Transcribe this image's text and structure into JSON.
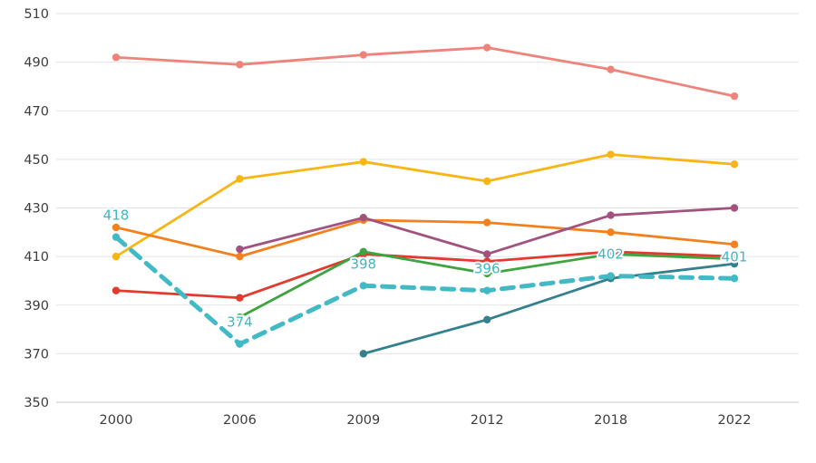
{
  "chart_data": {
    "type": "line",
    "title": "",
    "xlabel": "",
    "ylabel": "",
    "legend": "none",
    "grid": true,
    "ylim": [
      350,
      510
    ],
    "yticks": [
      "350",
      "370",
      "390",
      "410",
      "430",
      "450",
      "470",
      "490",
      "510"
    ],
    "categories": [
      "2000",
      "2006",
      "2009",
      "2012",
      "2018",
      "2022"
    ],
    "series": [
      {
        "name": "salmon-line",
        "color": "#ee837b",
        "dashed": false,
        "values": [
          492,
          489,
          493,
          496,
          487,
          476
        ]
      },
      {
        "name": "amber-line",
        "color": "#f8b513",
        "dashed": false,
        "values": [
          410,
          442,
          449,
          441,
          452,
          448
        ]
      },
      {
        "name": "orange-line",
        "color": "#f3801e",
        "dashed": false,
        "values": [
          422,
          410,
          425,
          424,
          420,
          415
        ]
      },
      {
        "name": "red-line",
        "color": "#e23a2e",
        "dashed": false,
        "values": [
          396,
          393,
          411,
          408,
          412,
          410
        ]
      },
      {
        "name": "purple-line",
        "color": "#a2527e",
        "dashed": false,
        "values": [
          null,
          413,
          426,
          411,
          427,
          430
        ]
      },
      {
        "name": "green-line",
        "color": "#3da43f",
        "dashed": false,
        "values": [
          null,
          385,
          412,
          403,
          411,
          409
        ]
      },
      {
        "name": "slate-teal-line",
        "color": "#34808e",
        "dashed": false,
        "values": [
          null,
          null,
          370,
          384,
          401,
          407
        ]
      },
      {
        "name": "teal-dashed-line",
        "color": "#41bac6",
        "dashed": true,
        "values": [
          418,
          374,
          398,
          396,
          402,
          401
        ],
        "point_labels": [
          "418",
          "374",
          "398",
          "396",
          "402",
          "401"
        ]
      }
    ],
    "label_color": "#3fb6c4",
    "axis_text_color": "#3d3d3d",
    "gridline_color": "#e3e3e3",
    "baseline_color": "#c9c9c9"
  }
}
